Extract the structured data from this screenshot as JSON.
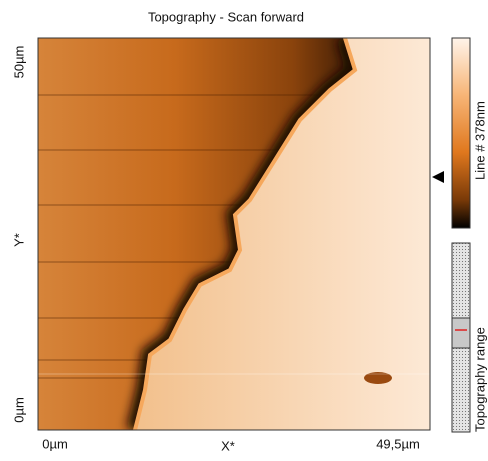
{
  "title": "Topography - Scan forward",
  "y_axis": {
    "top": "50µm",
    "label": "Y*",
    "bottom": "0µm"
  },
  "x_axis": {
    "left": "0µm",
    "label": "X*",
    "right": "49,5µm"
  },
  "colorbar_label": "Line # 378nm",
  "range_label": "Topography range"
}
